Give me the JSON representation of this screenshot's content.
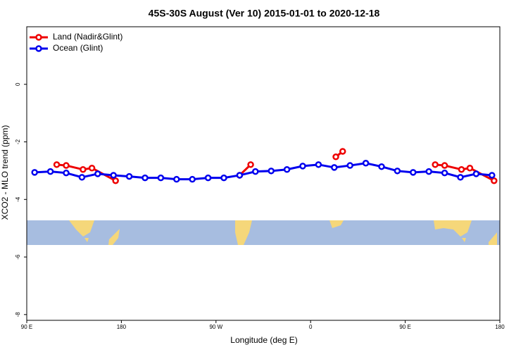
{
  "chart_data": {
    "type": "line",
    "title": "45S-30S August (Ver 10)   2015-01-01 to 2020-12-18",
    "x_label": "Longitude (deg E)",
    "y_label": "XCO2 - MLO trend (ppm)",
    "xlim": [
      90,
      540
    ],
    "xticks": [
      {
        "value": 90,
        "label": "90 E"
      },
      180,
      {
        "value": 270,
        "label": "90 W"
      },
      {
        "value": 360,
        "label": "0"
      },
      {
        "value": 450,
        "label": "90 E"
      },
      {
        "value": 540,
        "label": "180"
      }
    ],
    "ylim": [
      -8.2,
      2
    ],
    "yticks": [
      0,
      -2,
      -4,
      -6,
      -8
    ],
    "legend": "top-left",
    "series": [
      {
        "name": "Land (Nadir&Glint)",
        "color": "#ee0000",
        "x": [
          118.5,
          127.5,
          143.5,
          152,
          174.5,
          null,
          292.5,
          303,
          null,
          384,
          390.5,
          null,
          478.5,
          487.5,
          503.5,
          511.5,
          534.5
        ],
        "values": [
          -2.79,
          -2.82,
          -2.96,
          -2.91,
          -3.35,
          null,
          -3.16,
          -2.79,
          null,
          -2.52,
          -2.33,
          null,
          -2.79,
          -2.82,
          -2.96,
          -2.91,
          -3.35
        ]
      },
      {
        "name": "Ocean (Glint)",
        "color": "#0000ee",
        "x": [
          97.5,
          112.5,
          127.5,
          142.5,
          157.5,
          172.5,
          187.5,
          202.5,
          217.5,
          232.5,
          247.5,
          262.5,
          277.5,
          292.5,
          307.5,
          322.5,
          337.5,
          352.5,
          367.5,
          382.5,
          397.5,
          412.5,
          427.5,
          442.5,
          457.5,
          472.5,
          487.5,
          502.5,
          517.5,
          532.5
        ],
        "values": [
          -3.06,
          -3.03,
          -3.08,
          -3.23,
          -3.11,
          -3.16,
          -3.2,
          -3.25,
          -3.25,
          -3.3,
          -3.3,
          -3.25,
          -3.25,
          -3.16,
          -3.03,
          -3.01,
          -2.96,
          -2.84,
          -2.79,
          -2.89,
          -2.82,
          -2.74,
          -2.86,
          -3.01,
          -3.06,
          -3.03,
          -3.08,
          -3.23,
          -3.11,
          -3.16
        ]
      }
    ]
  }
}
